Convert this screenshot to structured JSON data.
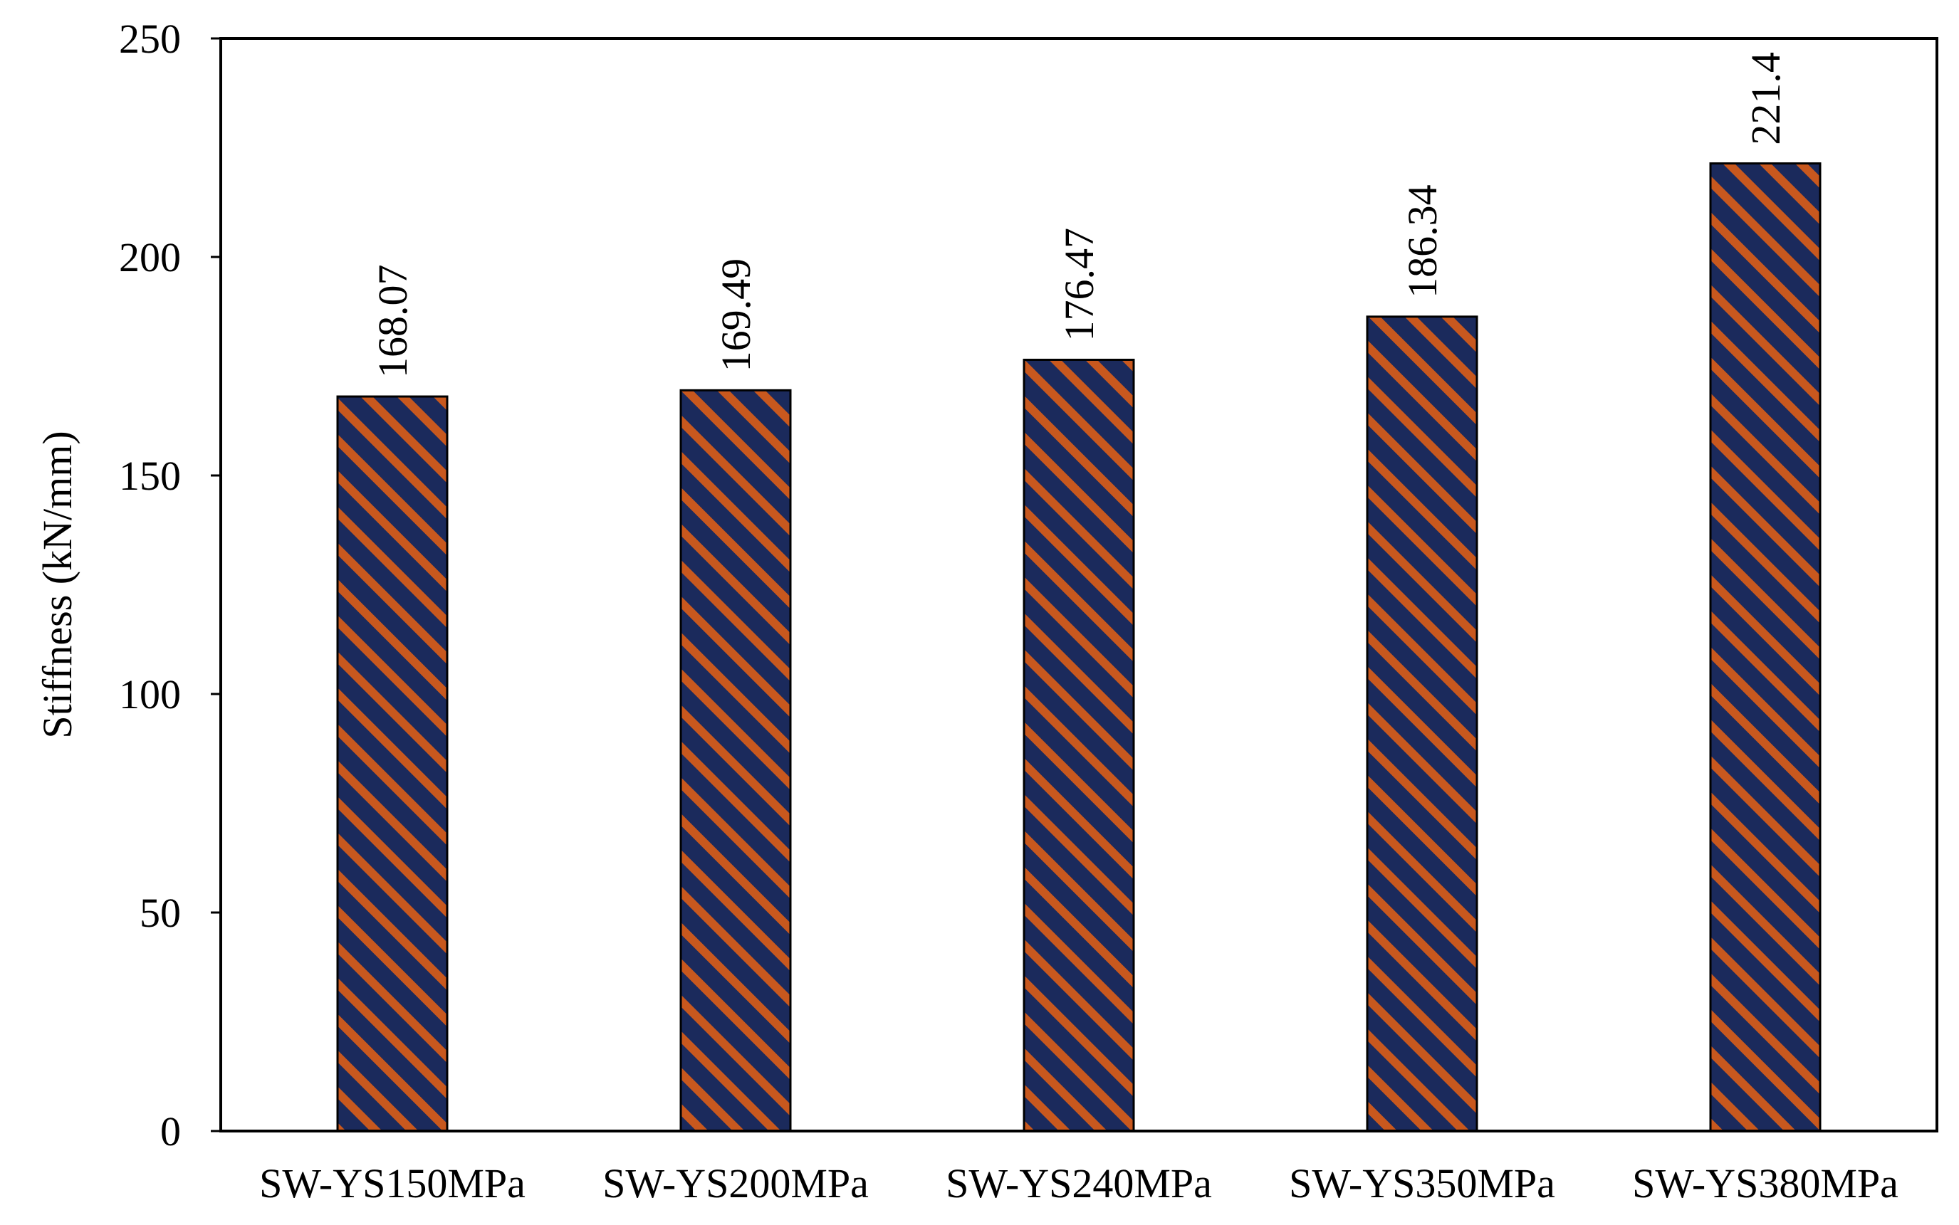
{
  "chart_data": {
    "type": "bar",
    "title": "",
    "xlabel": "",
    "ylabel": "Stiffness (kN/mm)",
    "categories": [
      "SW-YS150MPa",
      "SW-YS200MPa",
      "SW-YS240MPa",
      "SW-YS350MPa",
      "SW-YS380MPa"
    ],
    "values": [
      168.07,
      169.49,
      176.47,
      186.34,
      221.4
    ],
    "data_labels": [
      "168.07",
      "169.49",
      "176.47",
      "186.34",
      "221.4"
    ],
    "ylim": [
      0,
      250
    ],
    "yticks": [
      "0",
      "50",
      "100",
      "150",
      "200",
      "250"
    ],
    "grid": false,
    "legend": "none",
    "bar_pattern": "diagonal stripes",
    "colors": {
      "bar_dark": "#1b2a5c",
      "bar_stripe": "#c8581e",
      "bar_outline": "#000000"
    }
  }
}
